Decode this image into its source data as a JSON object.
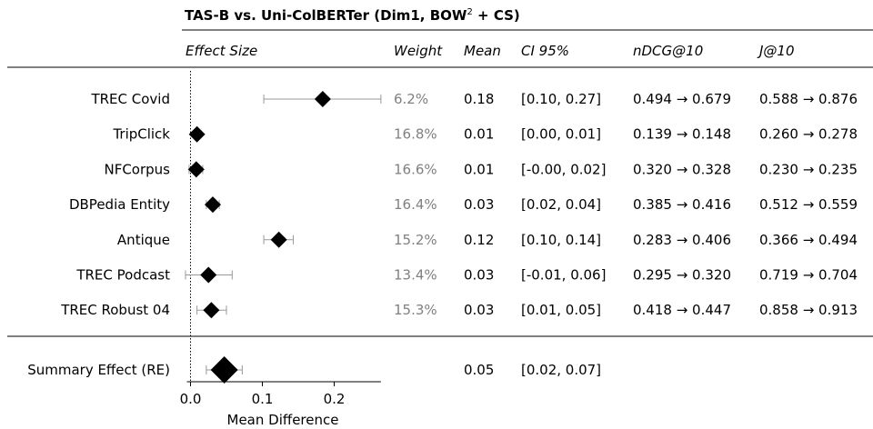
{
  "chart_data": {
    "type": "forest",
    "title": "TAS-B vs. Uni-ColBERTer (Dim1, BOW",
    "title_sup": "2",
    "title_tail": " + CS)",
    "columns": {
      "effect": "Effect Size",
      "weight": "Weight",
      "mean": "Mean",
      "ci": "CI 95%",
      "ndcg": "nDCG@10",
      "j": "J@10"
    },
    "xlabel": "Mean Difference",
    "xticks": [
      0.0,
      0.1,
      0.2
    ],
    "xtick_labels": [
      "0.0",
      "0.1",
      "0.2"
    ],
    "xlim": [
      -0.005,
      0.265
    ],
    "rows": [
      {
        "label": "TREC Covid",
        "mean": 0.184,
        "ci": [
          0.102,
          0.265
        ],
        "weight": "6.2%",
        "mean_text": "0.18",
        "ci_text": "[0.10, 0.27]",
        "ndcg": "0.494 → 0.679",
        "j": "0.588 → 0.876"
      },
      {
        "label": "TripClick",
        "mean": 0.009,
        "ci": [
          0.005,
          0.013
        ],
        "weight": "16.8%",
        "mean_text": "0.01",
        "ci_text": "[0.00, 0.01]",
        "ndcg": "0.139 → 0.148",
        "j": "0.260 → 0.278"
      },
      {
        "label": "NFCorpus",
        "mean": 0.008,
        "ci": [
          -0.002,
          0.017
        ],
        "weight": "16.6%",
        "mean_text": "0.01",
        "ci_text": "[-0.00, 0.02]",
        "ndcg": "0.320 → 0.328",
        "j": "0.230 → 0.235"
      },
      {
        "label": "DBPedia Entity",
        "mean": 0.031,
        "ci": [
          0.022,
          0.04
        ],
        "weight": "16.4%",
        "mean_text": "0.03",
        "ci_text": "[0.02, 0.04]",
        "ndcg": "0.385 → 0.416",
        "j": "0.512 → 0.559"
      },
      {
        "label": "Antique",
        "mean": 0.123,
        "ci": [
          0.102,
          0.143
        ],
        "weight": "15.2%",
        "mean_text": "0.12",
        "ci_text": "[0.10, 0.14]",
        "ndcg": "0.283 → 0.406",
        "j": "0.366 → 0.494"
      },
      {
        "label": "TREC Podcast",
        "mean": 0.025,
        "ci": [
          -0.007,
          0.058
        ],
        "weight": "13.4%",
        "mean_text": "0.03",
        "ci_text": "[-0.01, 0.06]",
        "ndcg": "0.295 → 0.320",
        "j": "0.719 → 0.704"
      },
      {
        "label": "TREC Robust 04",
        "mean": 0.029,
        "ci": [
          0.009,
          0.05
        ],
        "weight": "15.3%",
        "mean_text": "0.03",
        "ci_text": "[0.01, 0.05]",
        "ndcg": "0.418 → 0.447",
        "j": "0.858 → 0.913"
      }
    ],
    "summary": {
      "label": "Summary Effect (RE)",
      "mean": 0.047,
      "ci": [
        0.022,
        0.072
      ],
      "mean_text": "0.05",
      "ci_text": "[0.02, 0.07]"
    }
  }
}
